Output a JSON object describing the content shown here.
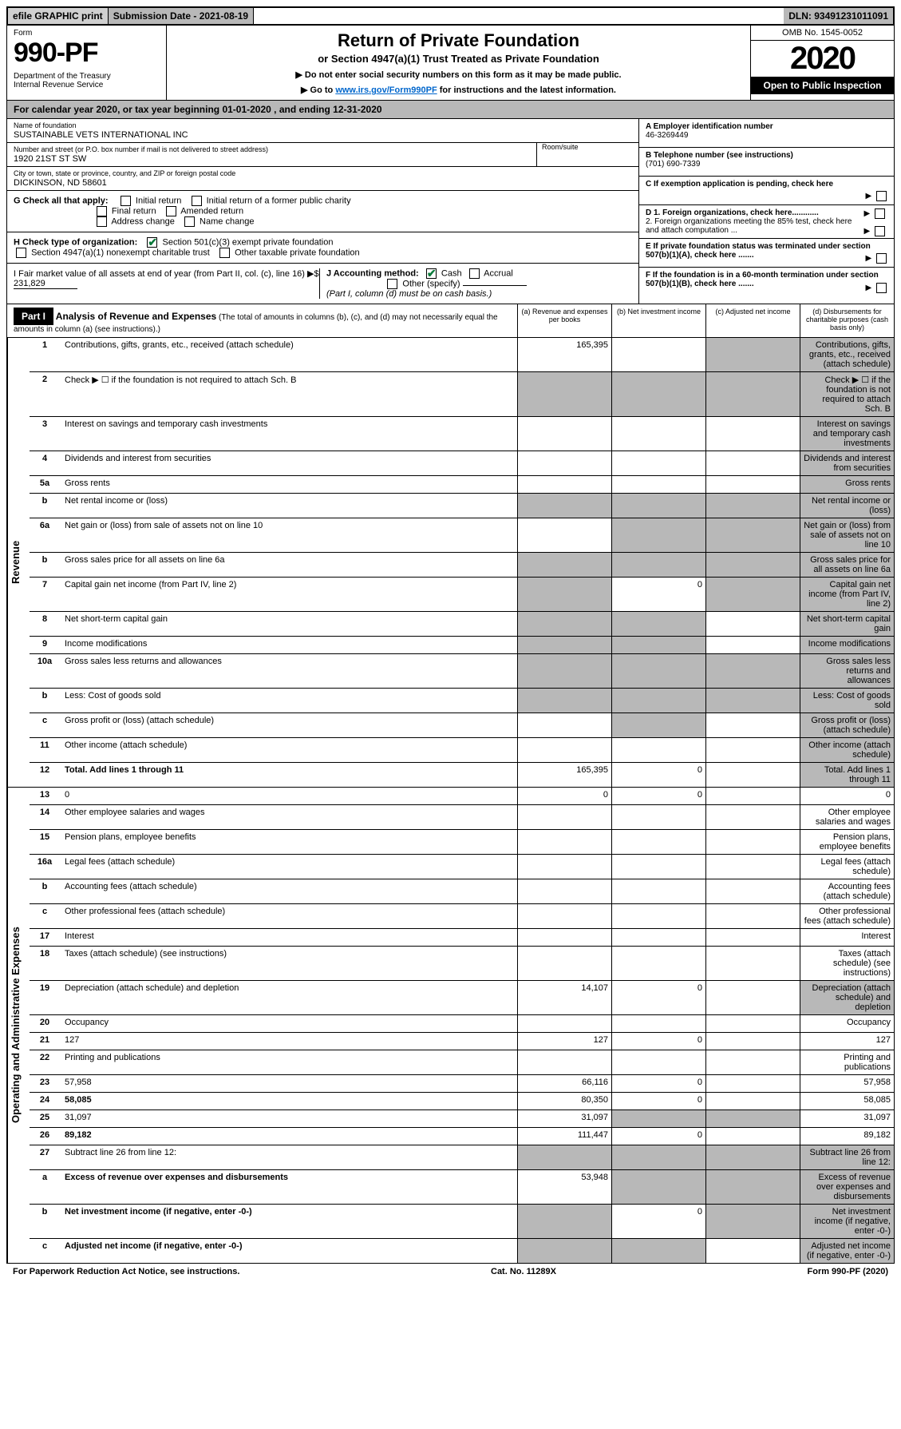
{
  "top": {
    "efile": "efile GRAPHIC print",
    "sub_label": "Submission Date - 2021-08-19",
    "dln": "DLN: 93491231011091"
  },
  "header": {
    "form_label": "Form",
    "form_num": "990-PF",
    "dept": "Department of the Treasury\nInternal Revenue Service",
    "title": "Return of Private Foundation",
    "subtitle": "or Section 4947(a)(1) Trust Treated as Private Foundation",
    "instr1": "▶ Do not enter social security numbers on this form as it may be made public.",
    "instr2_pre": "▶ Go to ",
    "instr2_link": "www.irs.gov/Form990PF",
    "instr2_post": " for instructions and the latest information.",
    "omb": "OMB No. 1545-0052",
    "year": "2020",
    "open": "Open to Public Inspection"
  },
  "cal": "For calendar year 2020, or tax year beginning 01-01-2020              , and ending 12-31-2020",
  "entity": {
    "name_label": "Name of foundation",
    "name": "SUSTAINABLE VETS INTERNATIONAL INC",
    "addr_label": "Number and street (or P.O. box number if mail is not delivered to street address)",
    "addr": "1920 21ST ST SW",
    "room_label": "Room/suite",
    "city_label": "City or town, state or province, country, and ZIP or foreign postal code",
    "city": "DICKINSON, ND  58601",
    "a_label": "A Employer identification number",
    "a_val": "46-3269449",
    "b_label": "B Telephone number (see instructions)",
    "b_val": "(701) 690-7339",
    "c_label": "C If exemption application is pending, check here",
    "d1": "D 1. Foreign organizations, check here............",
    "d2": "2. Foreign organizations meeting the 85% test, check here and attach computation ...",
    "e": "E  If private foundation status was terminated under section 507(b)(1)(A), check here .......",
    "f": "F  If the foundation is in a 60-month termination under section 507(b)(1)(B), check here ......."
  },
  "g": {
    "label": "G Check all that apply:",
    "opts": [
      "Initial return",
      "Initial return of a former public charity",
      "Final return",
      "Amended return",
      "Address change",
      "Name change"
    ]
  },
  "h": {
    "label": "H Check type of organization:",
    "opt1": "Section 501(c)(3) exempt private foundation",
    "opt2": "Section 4947(a)(1) nonexempt charitable trust",
    "opt3": "Other taxable private foundation"
  },
  "i": {
    "label": "I Fair market value of all assets at end of year (from Part II, col. (c), line 16) ▶$",
    "val": "231,829"
  },
  "j": {
    "label": "J Accounting method:",
    "cash": "Cash",
    "accrual": "Accrual",
    "other": "Other (specify)",
    "note": "(Part I, column (d) must be on cash basis.)"
  },
  "part1": {
    "label": "Part I",
    "title": "Analysis of Revenue and Expenses",
    "note": "(The total of amounts in columns (b), (c), and (d) may not necessarily equal the amounts in column (a) (see instructions).)",
    "col_a": "(a)  Revenue and expenses per books",
    "col_b": "(b)  Net investment income",
    "col_c": "(c)  Adjusted net income",
    "col_d": "(d)  Disbursements for charitable purposes (cash basis only)"
  },
  "side_rev": "Revenue",
  "side_exp": "Operating and Administrative Expenses",
  "rev": [
    {
      "n": "1",
      "d": "Contributions, gifts, grants, etc., received (attach schedule)",
      "a": "165,395",
      "shade": [
        "c",
        "d"
      ]
    },
    {
      "n": "2",
      "d": "Check ▶ ☐ if the foundation is not required to attach Sch. B",
      "allshade": true
    },
    {
      "n": "3",
      "d": "Interest on savings and temporary cash investments",
      "shade": [
        "d"
      ]
    },
    {
      "n": "4",
      "d": "Dividends and interest from securities",
      "shade": [
        "d"
      ]
    },
    {
      "n": "5a",
      "d": "Gross rents",
      "shade": [
        "d"
      ]
    },
    {
      "n": "b",
      "d": "Net rental income or (loss)",
      "allshade": true
    },
    {
      "n": "6a",
      "d": "Net gain or (loss) from sale of assets not on line 10",
      "shade": [
        "b",
        "c",
        "d"
      ]
    },
    {
      "n": "b",
      "d": "Gross sales price for all assets on line 6a",
      "allshade": true
    },
    {
      "n": "7",
      "d": "Capital gain net income (from Part IV, line 2)",
      "b": "0",
      "shade": [
        "a",
        "c",
        "d"
      ]
    },
    {
      "n": "8",
      "d": "Net short-term capital gain",
      "shade": [
        "a",
        "b",
        "d"
      ]
    },
    {
      "n": "9",
      "d": "Income modifications",
      "shade": [
        "a",
        "b",
        "d"
      ]
    },
    {
      "n": "10a",
      "d": "Gross sales less returns and allowances",
      "allshade": true
    },
    {
      "n": "b",
      "d": "Less: Cost of goods sold",
      "allshade": true
    },
    {
      "n": "c",
      "d": "Gross profit or (loss) (attach schedule)",
      "shade": [
        "b",
        "d"
      ]
    },
    {
      "n": "11",
      "d": "Other income (attach schedule)",
      "shade": [
        "d"
      ]
    },
    {
      "n": "12",
      "d": "Total. Add lines 1 through 11",
      "bold": true,
      "a": "165,395",
      "b": "0",
      "shade": [
        "d"
      ]
    }
  ],
  "exp": [
    {
      "n": "13",
      "d": "0",
      "a": "0",
      "b": "0"
    },
    {
      "n": "14",
      "d": "Other employee salaries and wages"
    },
    {
      "n": "15",
      "d": "Pension plans, employee benefits"
    },
    {
      "n": "16a",
      "d": "Legal fees (attach schedule)"
    },
    {
      "n": "b",
      "d": "Accounting fees (attach schedule)"
    },
    {
      "n": "c",
      "d": "Other professional fees (attach schedule)"
    },
    {
      "n": "17",
      "d": "Interest"
    },
    {
      "n": "18",
      "d": "Taxes (attach schedule) (see instructions)"
    },
    {
      "n": "19",
      "d": "Depreciation (attach schedule) and depletion",
      "a": "14,107",
      "b": "0",
      "shade": [
        "d"
      ]
    },
    {
      "n": "20",
      "d": "Occupancy"
    },
    {
      "n": "21",
      "d": "127",
      "a": "127",
      "b": "0"
    },
    {
      "n": "22",
      "d": "Printing and publications"
    },
    {
      "n": "23",
      "d": "57,958",
      "a": "66,116",
      "b": "0"
    },
    {
      "n": "24",
      "d": "58,085",
      "bold": true,
      "a": "80,350",
      "b": "0"
    },
    {
      "n": "25",
      "d": "31,097",
      "a": "31,097",
      "shade": [
        "b",
        "c"
      ]
    },
    {
      "n": "26",
      "d": "89,182",
      "bold": true,
      "a": "111,447",
      "b": "0"
    },
    {
      "n": "27",
      "d": "Subtract line 26 from line 12:",
      "allshade": true
    },
    {
      "n": "a",
      "d": "Excess of revenue over expenses and disbursements",
      "bold": true,
      "a": "53,948",
      "shade": [
        "b",
        "c",
        "d"
      ]
    },
    {
      "n": "b",
      "d": "Net investment income (if negative, enter -0-)",
      "bold": true,
      "b": "0",
      "shade": [
        "a",
        "c",
        "d"
      ]
    },
    {
      "n": "c",
      "d": "Adjusted net income (if negative, enter -0-)",
      "bold": true,
      "shade": [
        "a",
        "b",
        "d"
      ]
    }
  ],
  "footer": {
    "left": "For Paperwork Reduction Act Notice, see instructions.",
    "mid": "Cat. No. 11289X",
    "right": "Form 990-PF (2020)"
  }
}
